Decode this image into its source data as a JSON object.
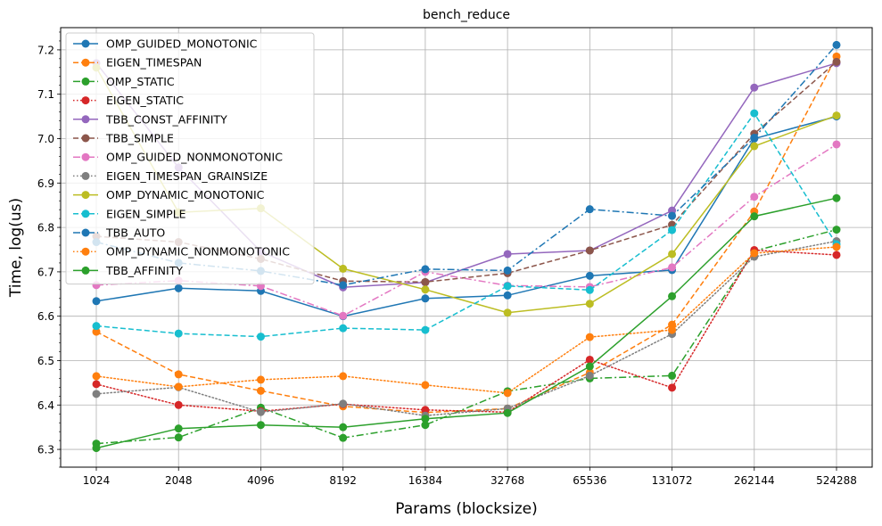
{
  "chart_data": {
    "type": "line",
    "title": "bench_reduce",
    "xlabel": "Params (blocksize)",
    "ylabel": "Time, log(us)",
    "categories": [
      "1024",
      "2048",
      "4096",
      "8192",
      "16384",
      "32768",
      "65536",
      "131072",
      "262144",
      "524288"
    ],
    "ylim": [
      6.26,
      7.25
    ],
    "yticks": [
      "6.3",
      "6.4",
      "6.5",
      "6.6",
      "6.7",
      "6.8",
      "6.9",
      "7.0",
      "7.1",
      "7.2"
    ],
    "grid": true,
    "legend_position": "upper-left",
    "series": [
      {
        "name": "OMP_GUIDED_MONOTONIC",
        "color": "#1f77b4",
        "dash": "solid",
        "values": [
          6.634,
          6.663,
          6.657,
          6.6,
          6.64,
          6.647,
          6.691,
          6.704,
          7.0,
          7.05
        ]
      },
      {
        "name": "EIGEN_TIMESPAN",
        "color": "#ff7f0e",
        "dash": "dashed",
        "values": [
          6.565,
          6.469,
          6.432,
          6.397,
          6.383,
          6.392,
          6.473,
          6.581,
          6.836,
          7.185
        ]
      },
      {
        "name": "OMP_STATIC",
        "color": "#2ca02c",
        "dash": "dashdot",
        "values": [
          6.313,
          6.327,
          6.394,
          6.326,
          6.355,
          6.431,
          6.46,
          6.466,
          6.747,
          6.795
        ]
      },
      {
        "name": "EIGEN_STATIC",
        "color": "#d62728",
        "dash": "dotted",
        "values": [
          6.447,
          6.4,
          6.386,
          6.402,
          6.389,
          6.384,
          6.502,
          6.439,
          6.749,
          6.738
        ]
      },
      {
        "name": "TBB_CONST_AFFINITY",
        "color": "#9467bd",
        "dash": "solid",
        "values": [
          7.17,
          6.935,
          6.746,
          6.665,
          6.676,
          6.74,
          6.748,
          6.838,
          7.115,
          7.17
        ]
      },
      {
        "name": "TBB_SIMPLE",
        "color": "#8c564b",
        "dash": "dashed",
        "values": [
          6.78,
          6.767,
          6.729,
          6.679,
          6.677,
          6.697,
          6.748,
          6.806,
          7.011,
          7.173
        ]
      },
      {
        "name": "OMP_GUIDED_NONMONOTONIC",
        "color": "#e377c2",
        "dash": "dashdot",
        "values": [
          6.67,
          6.68,
          6.668,
          6.601,
          6.7,
          6.669,
          6.666,
          6.71,
          6.869,
          6.987
        ]
      },
      {
        "name": "EIGEN_TIMESPAN_GRAINSIZE",
        "color": "#7f7f7f",
        "dash": "dotted",
        "values": [
          6.425,
          6.44,
          6.384,
          6.403,
          6.376,
          6.392,
          6.466,
          6.56,
          6.734,
          6.769
        ]
      },
      {
        "name": "OMP_DYNAMIC_MONOTONIC",
        "color": "#bcbd22",
        "dash": "solid",
        "values": [
          7.16,
          6.834,
          6.843,
          6.707,
          6.66,
          6.608,
          6.628,
          6.74,
          6.983,
          7.052
        ]
      },
      {
        "name": "EIGEN_SIMPLE",
        "color": "#17becf",
        "dash": "dashed",
        "values": [
          6.578,
          6.561,
          6.554,
          6.573,
          6.569,
          6.668,
          6.659,
          6.794,
          7.057,
          6.762
        ]
      },
      {
        "name": "TBB_AUTO",
        "color": "#1f77b4",
        "dash": "dashdot",
        "values": [
          6.767,
          6.72,
          6.702,
          6.67,
          6.706,
          6.703,
          6.841,
          6.826,
          7.002,
          7.211
        ]
      },
      {
        "name": "OMP_DYNAMIC_NONMONOTONIC",
        "color": "#ff7f0e",
        "dash": "dotted",
        "values": [
          6.465,
          6.441,
          6.457,
          6.465,
          6.445,
          6.427,
          6.553,
          6.569,
          6.742,
          6.756
        ]
      },
      {
        "name": "TBB_AFFINITY",
        "color": "#2ca02c",
        "dash": "solid",
        "values": [
          6.303,
          6.347,
          6.355,
          6.35,
          6.369,
          6.382,
          6.487,
          6.645,
          6.825,
          6.866
        ]
      }
    ]
  }
}
